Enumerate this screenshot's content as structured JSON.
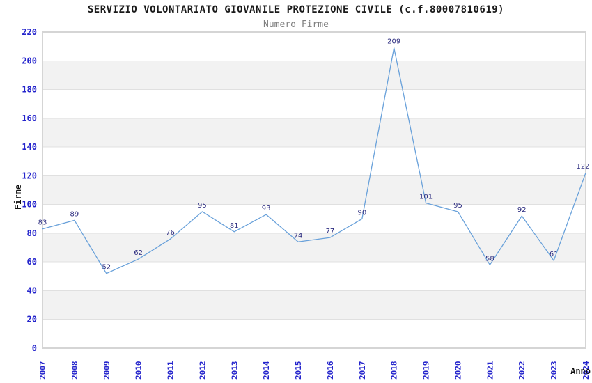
{
  "chart_data": {
    "type": "line",
    "title": "SERVIZIO VOLONTARIATO GIOVANILE PROTEZIONE CIVILE (c.f.80007810619)",
    "subtitle": "Numero Firme",
    "xlabel": "Anno",
    "ylabel": "Firme",
    "categories": [
      "2007",
      "2008",
      "2009",
      "2010",
      "2011",
      "2012",
      "2013",
      "2014",
      "2015",
      "2016",
      "2017",
      "2018",
      "2019",
      "2020",
      "2021",
      "2022",
      "2023",
      "2024"
    ],
    "values": [
      83,
      89,
      52,
      62,
      76,
      95,
      81,
      93,
      74,
      77,
      90,
      209,
      101,
      95,
      58,
      92,
      61,
      122
    ],
    "ylim": [
      0,
      220
    ],
    "ytick_step": 20,
    "legend": "none",
    "grid": "horizontal gridlines with alternating shaded bands",
    "point_labels_visible": true,
    "colors": {
      "line": "#69a1da",
      "tick_label": "#2424cc",
      "point_label": "#2d2d80",
      "band_shade": "#f2f2f2",
      "gridline": "#e0e0e0",
      "plot_border": "#d5d5d5",
      "title": "#1a1a1a",
      "subtitle": "#808080",
      "axis_title": "#111111",
      "background": "#ffffff"
    }
  }
}
